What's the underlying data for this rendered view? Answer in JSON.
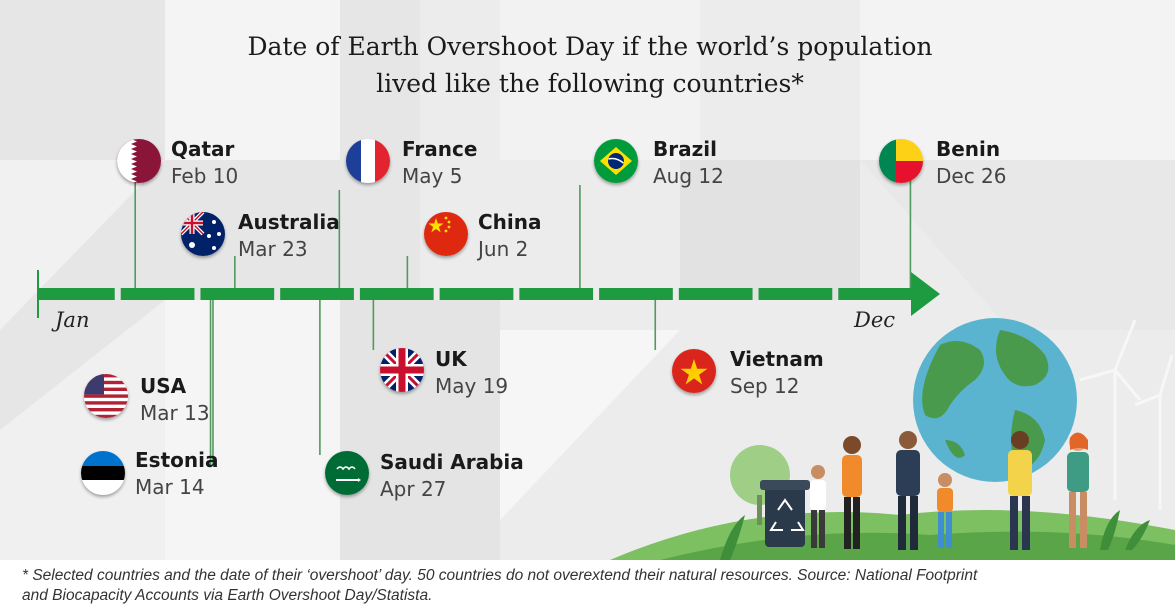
{
  "chart_data": {
    "type": "timeline",
    "title_lines": [
      "Date of Earth Overshoot Day if the world’s population",
      "lived like the following countries*"
    ],
    "axis": {
      "start_label": "Jan",
      "end_label": "Dec",
      "x_range": [
        "Jan 1",
        "Dec 31"
      ]
    },
    "points": [
      {
        "country": "Qatar",
        "date": "Feb 10",
        "day_of_year": 41,
        "flag": "qatar-flag",
        "side": "above"
      },
      {
        "country": "Australia",
        "date": "Mar 23",
        "day_of_year": 82,
        "flag": "australia-flag",
        "side": "above"
      },
      {
        "country": "France",
        "date": "May 5",
        "day_of_year": 125,
        "flag": "france-flag",
        "side": "above"
      },
      {
        "country": "China",
        "date": "Jun 2",
        "day_of_year": 153,
        "flag": "china-flag",
        "side": "above"
      },
      {
        "country": "Brazil",
        "date": "Aug 12",
        "day_of_year": 224,
        "flag": "brazil-flag",
        "side": "above"
      },
      {
        "country": "Benin",
        "date": "Dec 26",
        "day_of_year": 360,
        "flag": "benin-flag",
        "side": "above"
      },
      {
        "country": "USA",
        "date": "Mar 13",
        "day_of_year": 72,
        "flag": "usa-flag",
        "side": "below"
      },
      {
        "country": "Estonia",
        "date": "Mar 14",
        "day_of_year": 73,
        "flag": "estonia-flag",
        "side": "below"
      },
      {
        "country": "Saudi Arabia",
        "date": "Apr 27",
        "day_of_year": 117,
        "flag": "saudi-arabia-flag",
        "side": "below"
      },
      {
        "country": "UK",
        "date": "May 19",
        "day_of_year": 139,
        "flag": "uk-flag",
        "side": "below"
      },
      {
        "country": "Vietnam",
        "date": "Sep 12",
        "day_of_year": 255,
        "flag": "vietnam-flag",
        "side": "below"
      }
    ]
  },
  "footnote": {
    "line1": "* Selected countries and the date of their ‘overshoot’ day. 50 countries do not overextend their natural resources. Source: National Footprint",
    "line2": "and Biocapacity Accounts via Earth Overshoot Day/Statista."
  },
  "colors": {
    "timeline": "#1e9a40",
    "connector": "#4f9a5c",
    "background": "#ececec",
    "panel": "#ffffff"
  },
  "illustration": {
    "icon": "globe-people-illustration"
  }
}
